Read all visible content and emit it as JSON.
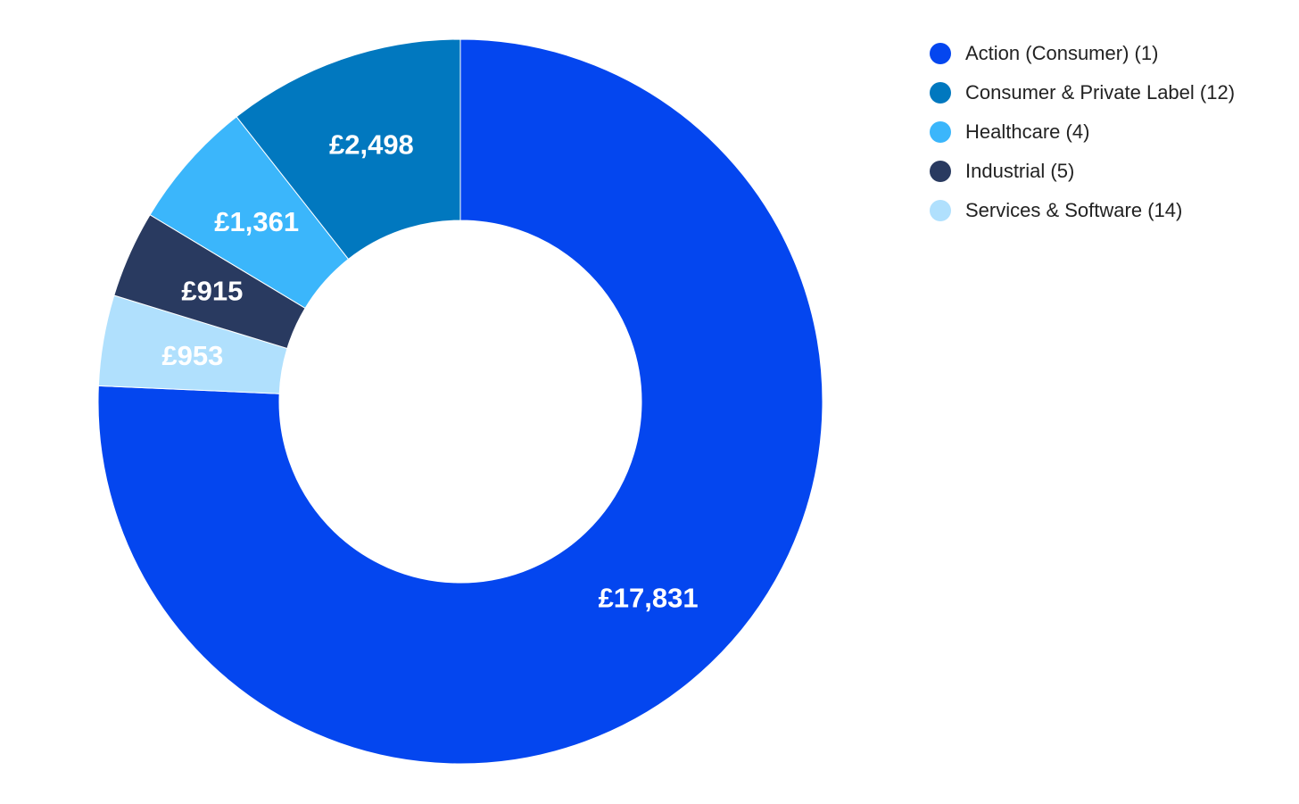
{
  "chart_data": {
    "type": "pie",
    "variant": "donut",
    "categories": [
      "Action (Consumer) (1)",
      "Consumer & Private Label (12)",
      "Healthcare (4)",
      "Industrial (5)",
      "Services & Software (14)"
    ],
    "values": [
      17831,
      2498,
      1361,
      915,
      953
    ],
    "value_labels": [
      "£17,831",
      "£2,498",
      "£1,361",
      "£915",
      "£953"
    ],
    "colors": [
      "#0446ef",
      "#0178bf",
      "#3bb6fb",
      "#293a60",
      "#b0e0fd"
    ],
    "slice_order": "clockwise from top, in order: Action (Consumer), Services & Software, Industrial, Healthcare, Consumer & Private Label",
    "legend": {
      "placement": "top-right",
      "items": [
        {
          "label": "Action (Consumer) (1)",
          "color": "#0446ef"
        },
        {
          "label": "Consumer & Private Label (12)",
          "color": "#0178bf"
        },
        {
          "label": "Healthcare (4)",
          "color": "#3bb6fb"
        },
        {
          "label": "Industrial (5)",
          "color": "#293a60"
        },
        {
          "label": "Services & Software (14)",
          "color": "#b0e0fd"
        }
      ]
    },
    "title": "",
    "grid": false
  }
}
